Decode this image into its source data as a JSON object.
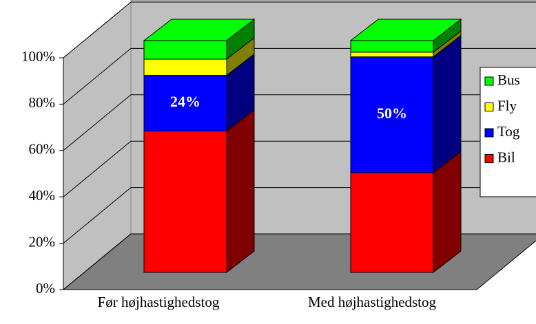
{
  "chart_data": {
    "type": "bar",
    "stacked": true,
    "categories": [
      "Før højhastighedstog",
      "Med højhastighedstog"
    ],
    "series": [
      {
        "name": "Bil",
        "color": "#ff0000",
        "values": [
          61,
          43
        ]
      },
      {
        "name": "Tog",
        "color": "#0000ff",
        "values": [
          24,
          50
        ],
        "value_labels": [
          "24%",
          "50%"
        ]
      },
      {
        "name": "Fly",
        "color": "#ffff00",
        "values": [
          7,
          2
        ]
      },
      {
        "name": "Bus",
        "color": "#00ff00",
        "values": [
          8,
          5
        ]
      }
    ],
    "ylim": [
      0,
      100
    ],
    "yticks": [
      {
        "value": 0,
        "label": "0%"
      },
      {
        "value": 20,
        "label": "20%"
      },
      {
        "value": 40,
        "label": "40%"
      },
      {
        "value": 60,
        "label": "60%"
      },
      {
        "value": 80,
        "label": "80%"
      },
      {
        "value": 100,
        "label": "100%"
      }
    ],
    "grid": true,
    "legend": "right"
  }
}
